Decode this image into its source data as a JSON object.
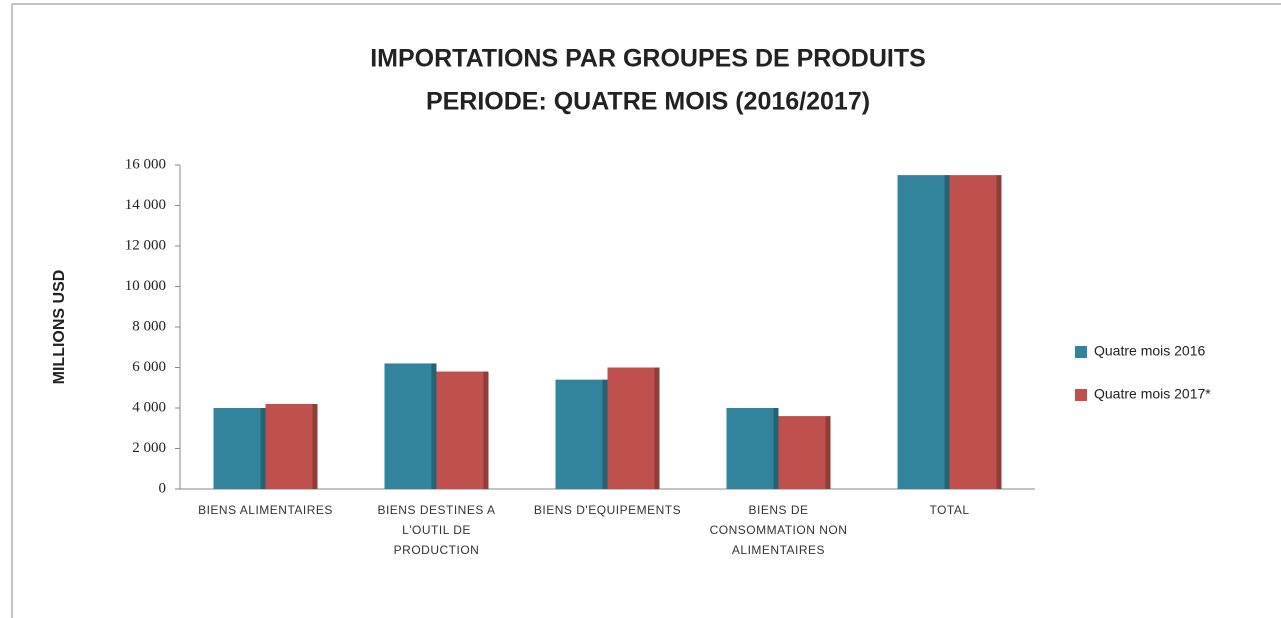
{
  "chart_data": {
    "type": "bar",
    "title": "IMPORTATIONS PAR GROUPES DE PRODUITS",
    "subtitle": "PERIODE: QUATRE  MOIS (2016/2017)",
    "y_label": "MILLIONS USD",
    "categories": [
      "BIENS ALIMENTAIRES",
      "BIENS DESTINES A L'OUTIL DE PRODUCTION",
      "BIENS D'EQUIPEMENTS",
      "BIENS DE CONSOMMATION NON ALIMENTAIRES",
      "TOTAL"
    ],
    "series": [
      {
        "name": "Quatre  mois 2016",
        "color": "#31849b",
        "values": [
          4000,
          6200,
          5400,
          4000,
          15500
        ]
      },
      {
        "name": "Quatre mois 2017*",
        "color": "#c0504d",
        "values": [
          4200,
          5800,
          6000,
          3600,
          15500
        ]
      }
    ],
    "ylim": [
      0,
      16000
    ],
    "yticks": [
      0,
      {
        "value": 2000,
        "label": "2 000"
      },
      {
        "value": 4000,
        "label": "4 000"
      },
      {
        "value": 6000,
        "label": "6 000"
      },
      {
        "value": 8000,
        "label": "8 000"
      },
      {
        "value": 10000,
        "label": "10 000"
      },
      {
        "value": 12000,
        "label": "12 000"
      },
      {
        "value": 14000,
        "label": "14 000"
      },
      {
        "value": 16000,
        "label": "16 000"
      }
    ],
    "grid": false,
    "legend": "right"
  }
}
